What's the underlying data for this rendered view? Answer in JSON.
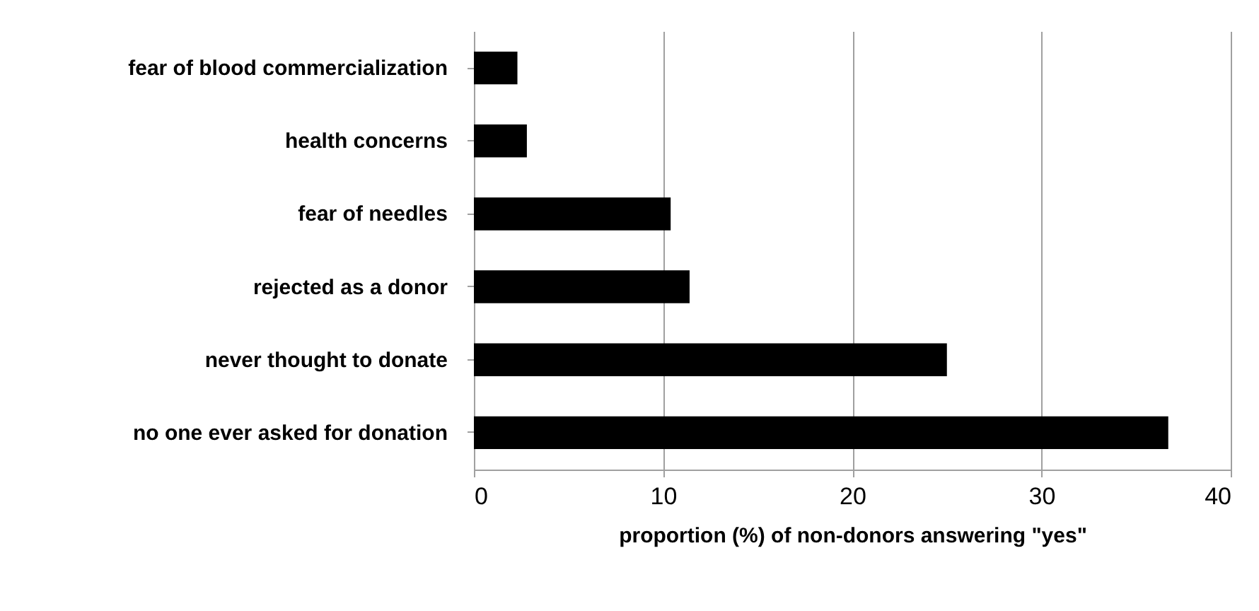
{
  "chart_data": {
    "type": "bar",
    "orientation": "horizontal",
    "xlabel": "proportion (%) of non-donors answering \"yes\"",
    "categories": [
      "fear of blood commercialization",
      "health concerns",
      "fear of needles",
      "rejected as a donor",
      "never thought to donate",
      "no one ever asked for donation"
    ],
    "values": [
      2.3,
      2.8,
      10.4,
      11.4,
      25.0,
      36.7
    ],
    "color": "#000000",
    "xlim": [
      0,
      40
    ],
    "xticks": [
      0,
      10,
      20,
      30,
      40
    ],
    "grid": "x"
  }
}
